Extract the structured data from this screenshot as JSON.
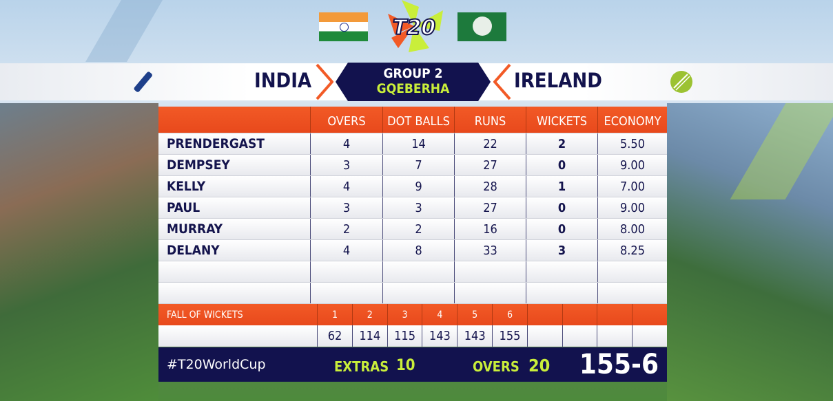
{
  "header": {
    "logo": "T20",
    "group": "GROUP 2",
    "venue": "GQEBERHA",
    "team_batting": "INDIA",
    "team_bowling": "IRELAND",
    "batting_icon": "bat-icon",
    "bowling_icon": "ball-icon"
  },
  "table": {
    "columns": [
      "OVERS",
      "DOT BALLS",
      "RUNS",
      "WICKETS",
      "ECONOMY"
    ],
    "rows": [
      {
        "name": "PRENDERGAST",
        "overs": "4",
        "dots": "14",
        "runs": "22",
        "wickets": "2",
        "economy": "5.50"
      },
      {
        "name": "DEMPSEY",
        "overs": "3",
        "dots": "7",
        "runs": "27",
        "wickets": "0",
        "economy": "9.00"
      },
      {
        "name": "KELLY",
        "overs": "4",
        "dots": "9",
        "runs": "28",
        "wickets": "1",
        "economy": "7.00"
      },
      {
        "name": "PAUL",
        "overs": "3",
        "dots": "3",
        "runs": "27",
        "wickets": "0",
        "economy": "9.00"
      },
      {
        "name": "MURRAY",
        "overs": "2",
        "dots": "2",
        "runs": "16",
        "wickets": "0",
        "economy": "8.00"
      },
      {
        "name": "DELANY",
        "overs": "4",
        "dots": "8",
        "runs": "33",
        "wickets": "3",
        "economy": "8.25"
      }
    ]
  },
  "fall_of_wickets": {
    "label": "FALL OF WICKETS",
    "numbers": [
      "1",
      "2",
      "3",
      "4",
      "5",
      "6",
      "",
      "",
      "",
      ""
    ],
    "scores": [
      "62",
      "114",
      "115",
      "143",
      "143",
      "155",
      "",
      "",
      "",
      ""
    ]
  },
  "footer": {
    "hashtag": "#T20WorldCup",
    "extras_label": "EXTRAS",
    "extras": "10",
    "overs_label": "OVERS",
    "overs": "20",
    "total": "155-6"
  },
  "colors": {
    "orange": "#ef5322",
    "navy": "#12124e",
    "lime": "#c9ee3a"
  }
}
